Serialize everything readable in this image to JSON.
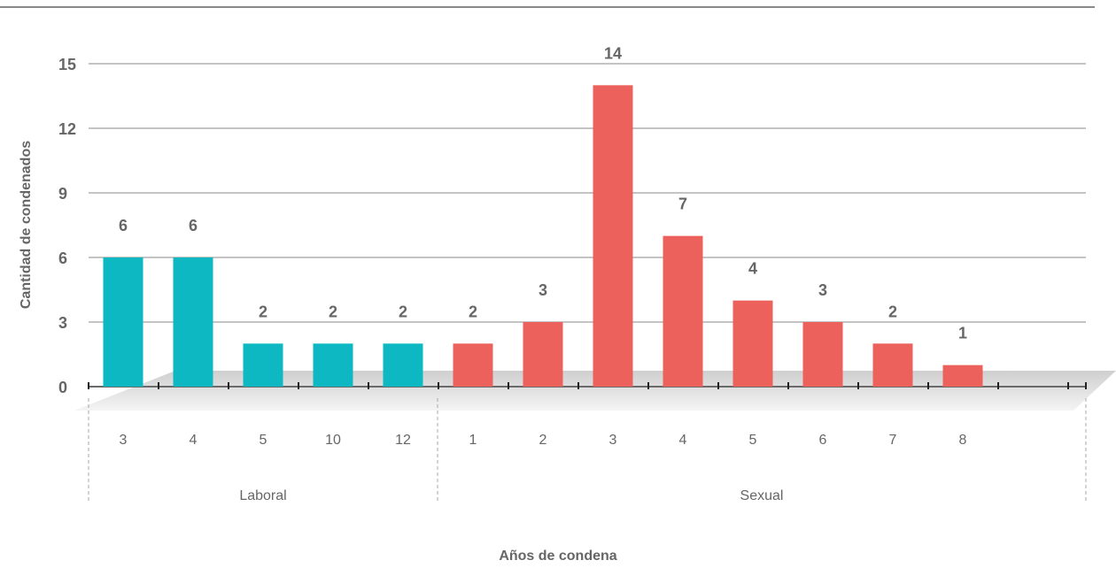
{
  "chart_data": {
    "type": "bar",
    "title": "",
    "xlabel": "Años de condena",
    "ylabel": "Cantidad de condenados",
    "ylim": [
      0,
      15
    ],
    "yticks": [
      0,
      3,
      6,
      9,
      12,
      15
    ],
    "grid": true,
    "groups": [
      {
        "name": "Laboral",
        "color": "#0db8c2",
        "categories": [
          "3",
          "4",
          "5",
          "10",
          "12"
        ],
        "values": [
          6,
          6,
          2,
          2,
          2
        ]
      },
      {
        "name": "Sexual",
        "color": "#ec615c",
        "categories": [
          "1",
          "2",
          "3",
          "4",
          "5",
          "6",
          "7",
          "8"
        ],
        "values": [
          2,
          3,
          14,
          7,
          4,
          3,
          2,
          1
        ]
      }
    ]
  },
  "colors": {
    "laboral": "#0db8c2",
    "sexual": "#ec615c",
    "label": "#666666",
    "grid": "#8a8a8a"
  }
}
